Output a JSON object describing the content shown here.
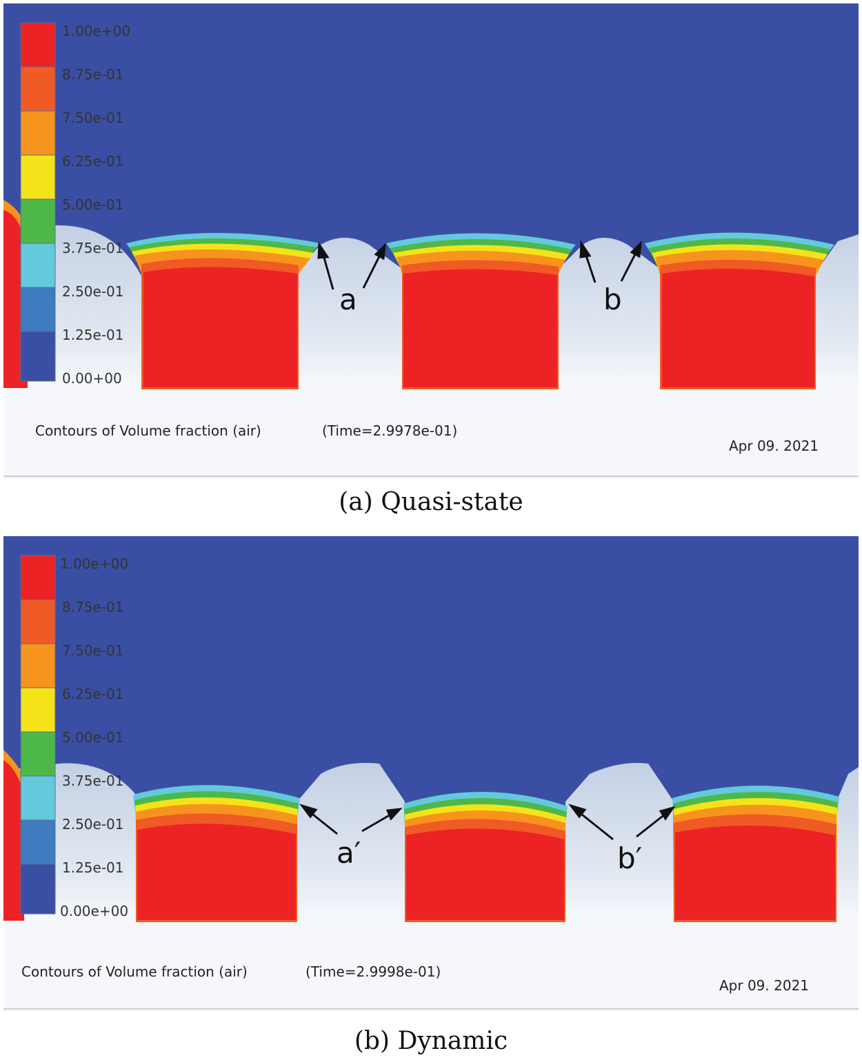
{
  "panels": [
    {
      "legend_ticks": [
        "1.00e+00",
        "8.75e-01",
        "7.50e-01",
        "6.25e-01",
        "5.00e-01",
        "3.75e-01",
        "2.50e-01",
        "1.25e-01",
        "0.00+00"
      ],
      "title": "Contours of Volume fraction (air)",
      "time": "(Time=2.9978e-01)",
      "date": "Apr 09. 2021",
      "annotation_left": "a",
      "annotation_right": "b",
      "caption": "(a) Quasi-state"
    },
    {
      "legend_ticks": [
        "1.00e+00",
        "8.75e-01",
        "7.50e-01",
        "6.25e-01",
        "5.00e-01",
        "3.75e-01",
        "2.50e-01",
        "1.25e-01",
        "0.00e+00"
      ],
      "title": "Contours of Volume fraction (air)",
      "time": "(Time=2.9998e-01)",
      "date": "Apr 09. 2021",
      "annotation_left": "a′",
      "annotation_right": "b′",
      "caption": "(b) Dynamic"
    }
  ],
  "colors": {
    "background_fluid": "#3a4fa3",
    "solid": "#c9d5e6",
    "bands": [
      "#ed2224",
      "#f05a24",
      "#f7941d",
      "#f5e31a",
      "#4db848",
      "#65c9dc",
      "#3f7bbf",
      "#3a4fa3"
    ]
  }
}
